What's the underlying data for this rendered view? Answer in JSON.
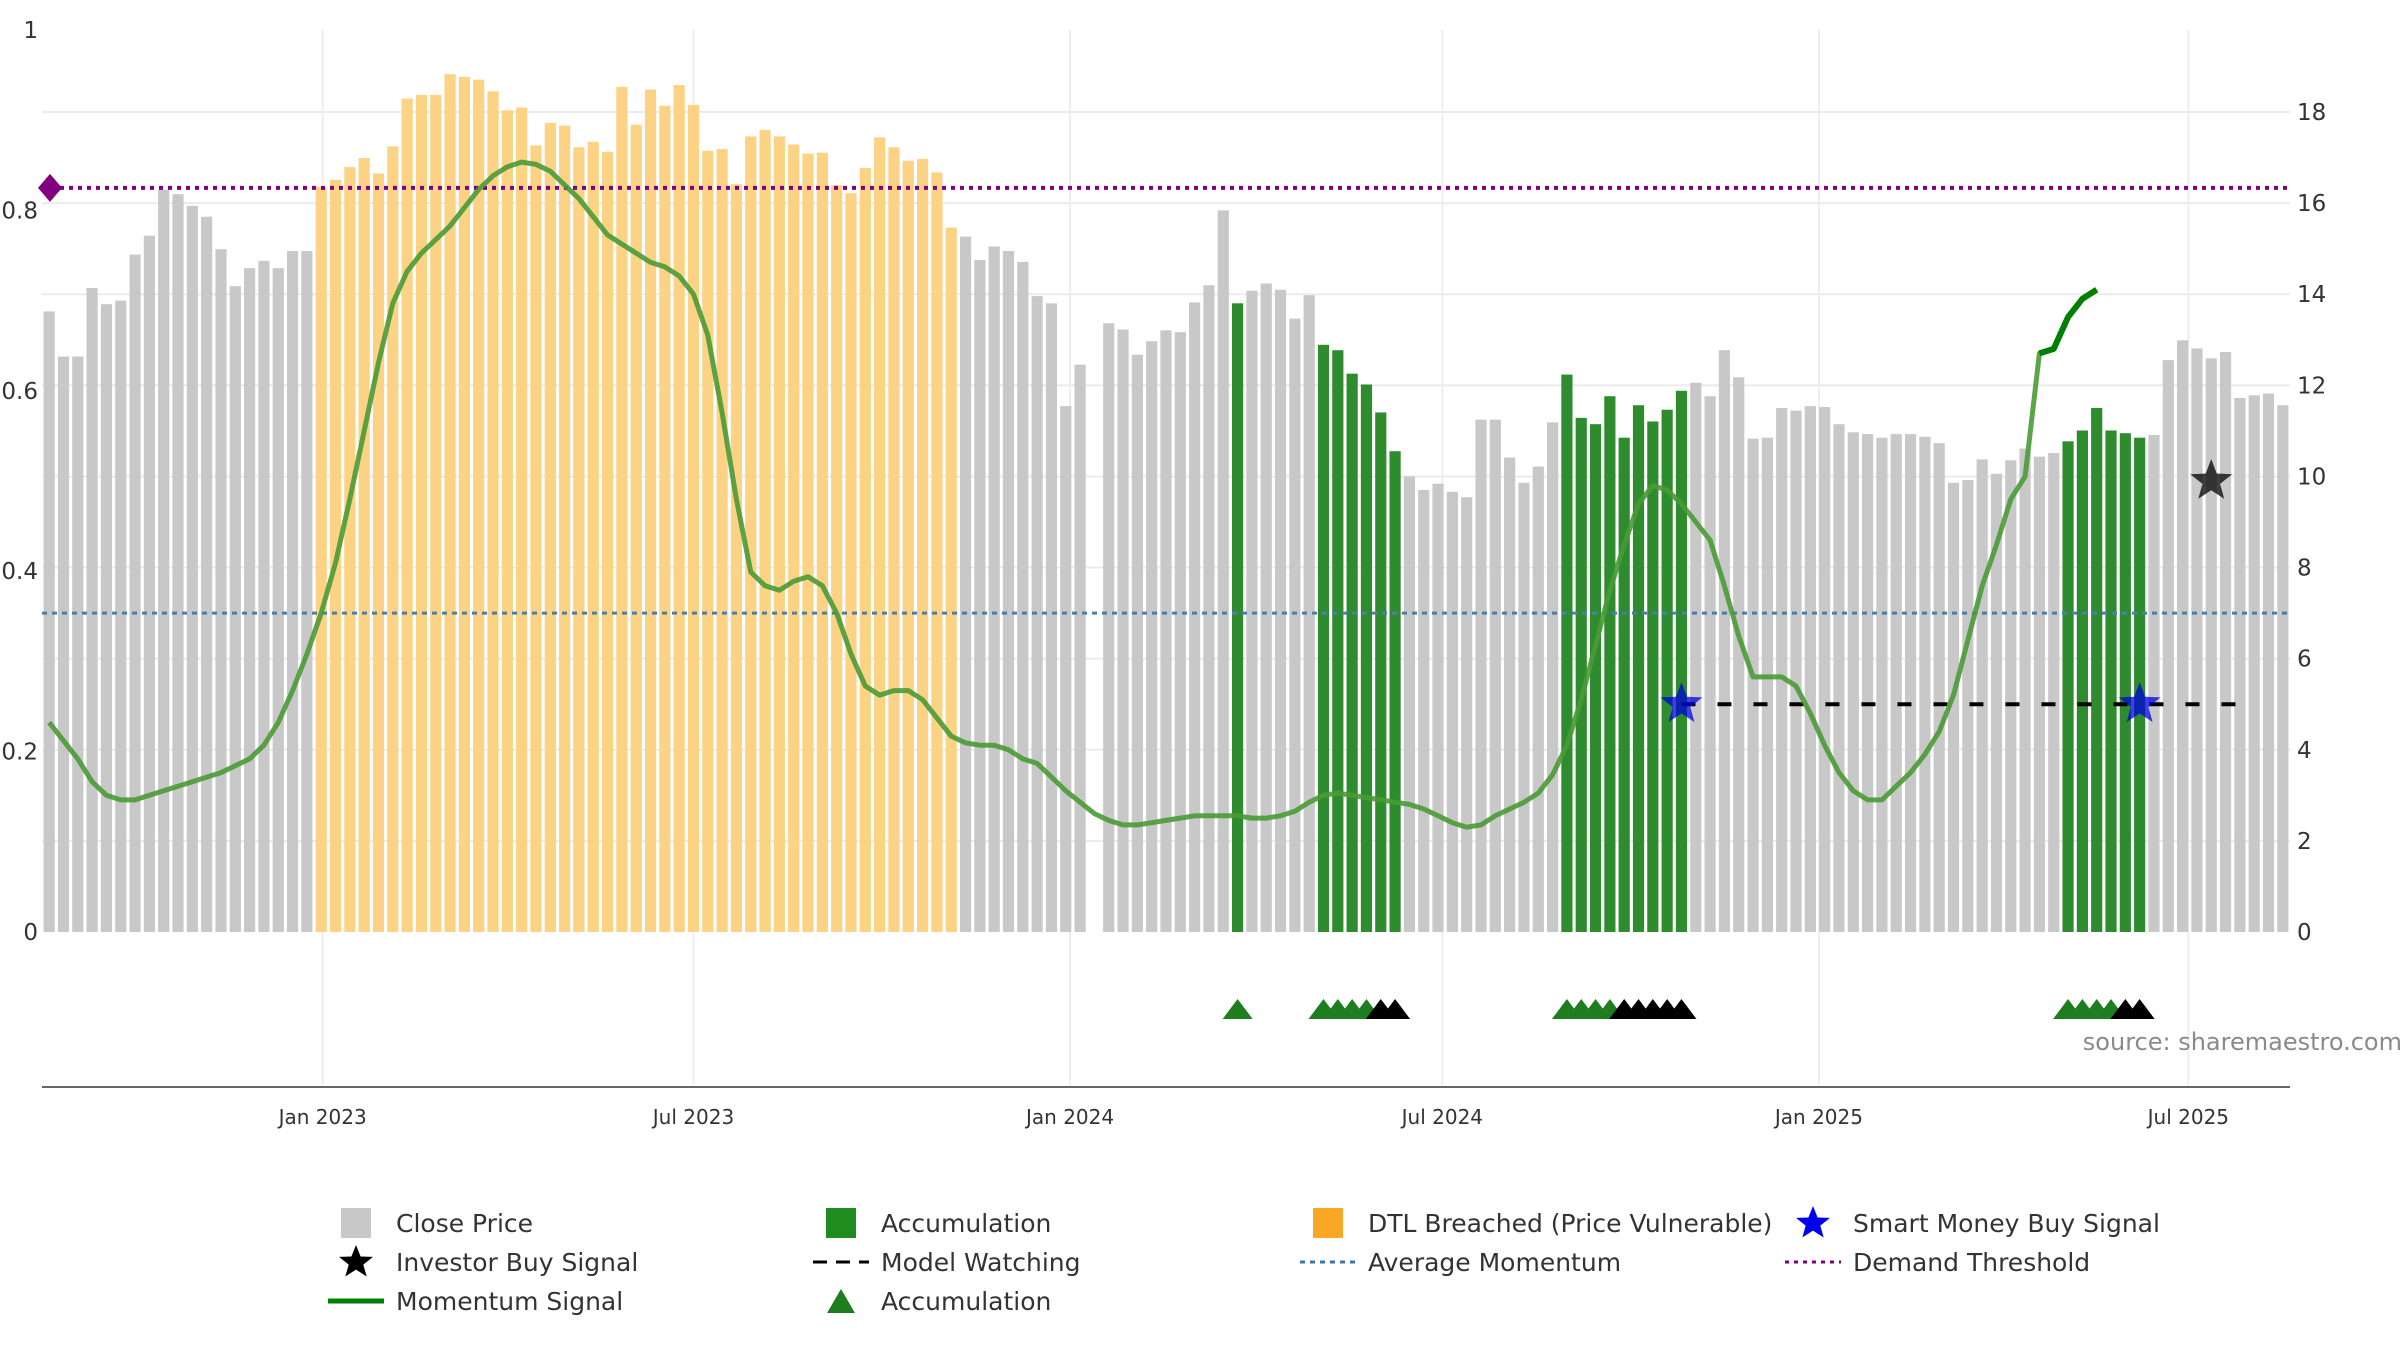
{
  "chart_data": {
    "type": "bar",
    "source_note": "source: sharemaestro.com",
    "x_tick_labels": [
      "Jan 2023",
      "Jul 2023",
      "Jan 2024",
      "Jul 2024",
      "Jan 2025",
      "Jul 2025"
    ],
    "x_tick_positions": [
      19.1,
      45.0,
      71.3,
      97.3,
      123.6,
      149.4
    ],
    "left_axis": {
      "ticks": [
        0,
        0.2,
        0.4,
        0.6,
        0.8,
        1
      ],
      "labels": [
        "0",
        "0.2",
        "0.4",
        "0.6",
        "0.8",
        "1"
      ],
      "range": [
        0,
        1
      ]
    },
    "right_axis": {
      "ticks": [
        0,
        2,
        4,
        6,
        8,
        10,
        12,
        14,
        16,
        18
      ],
      "labels": [
        "0",
        "2",
        "4",
        "6",
        "8",
        "10",
        "12",
        "14",
        "16",
        "18"
      ],
      "range": [
        0,
        19.8
      ]
    },
    "colors": {
      "close_price": "#c8c8c8",
      "accumulation": "#2e8b2e",
      "dtl_breached": "#fcd284",
      "momentum": "#4a9a35",
      "momentum_highlight": "#008000",
      "demand_threshold": "#800080",
      "average_momentum": "#4b7fa3",
      "model_watching": "#000000",
      "smart_money": "#0000dd",
      "investor_buy": "#000000",
      "grid": "#ebebeb"
    },
    "series": [
      {
        "name": "Close Price",
        "axis": "left",
        "values": [
          0.688,
          0.638,
          0.638,
          0.714,
          0.696,
          0.7,
          0.751,
          0.772,
          0.823,
          0.818,
          0.805,
          0.793,
          0.757,
          0.716,
          0.736,
          0.744,
          0.736,
          0.755,
          0.755,
          0.826,
          0.834,
          0.848,
          0.858,
          0.841,
          0.871,
          0.924,
          0.928,
          0.928,
          0.951,
          0.948,
          0.945,
          0.932,
          0.911,
          0.914,
          0.872,
          0.897,
          0.894,
          0.87,
          0.876,
          0.865,
          0.937,
          0.895,
          0.934,
          0.916,
          0.939,
          0.917,
          0.866,
          0.868,
          0.829,
          0.882,
          0.889,
          0.882,
          0.873,
          0.863,
          0.864,
          0.828,
          0.819,
          0.847,
          0.881,
          0.87,
          0.855,
          0.857,
          0.842,
          0.781,
          0.771,
          0.745,
          0.76,
          0.755,
          0.743,
          0.705,
          0.697,
          0.583,
          0.629,
          0.0,
          0.675,
          0.668,
          0.64,
          0.655,
          0.667,
          0.665,
          0.698,
          0.717,
          0.8,
          0.697,
          0.711,
          0.719,
          0.712,
          0.68,
          0.706,
          0.651,
          0.645,
          0.619,
          0.607,
          0.576,
          0.533,
          0.505,
          0.49,
          0.497,
          0.488,
          0.482,
          0.568,
          0.568,
          0.526,
          0.498,
          0.516,
          0.565,
          0.618,
          0.57,
          0.563,
          0.594,
          0.548,
          0.584,
          0.566,
          0.579,
          0.6,
          0.609,
          0.594,
          0.645,
          0.615,
          0.547,
          0.548,
          0.581,
          0.578,
          0.583,
          0.582,
          0.563,
          0.554,
          0.552,
          0.548,
          0.552,
          0.552,
          0.549,
          0.542,
          0.498,
          0.501,
          0.524,
          0.508,
          0.523,
          0.536,
          0.527,
          0.531,
          0.544,
          0.556,
          0.581,
          0.556,
          0.553,
          0.548,
          0.551,
          0.634,
          0.656,
          0.647,
          0.636,
          0.643,
          0.592,
          0.595,
          0.597,
          0.584
        ]
      },
      {
        "name": "Momentum Signal",
        "axis": "right",
        "values": [
          4.6,
          4.2,
          3.8,
          3.3,
          3.0,
          2.9,
          2.9,
          3.0,
          3.1,
          3.2,
          3.3,
          3.4,
          3.5,
          3.65,
          3.8,
          4.1,
          4.6,
          5.3,
          6.1,
          7.0,
          8.1,
          9.5,
          11.0,
          12.5,
          13.8,
          14.5,
          14.9,
          15.2,
          15.5,
          15.9,
          16.3,
          16.6,
          16.8,
          16.9,
          16.85,
          16.7,
          16.4,
          16.1,
          15.7,
          15.3,
          15.1,
          14.9,
          14.7,
          14.6,
          14.4,
          14.0,
          13.1,
          11.4,
          9.5,
          7.9,
          7.6,
          7.5,
          7.7,
          7.8,
          7.6,
          7.0,
          6.1,
          5.4,
          5.2,
          5.3,
          5.3,
          5.1,
          4.7,
          4.3,
          4.15,
          4.1,
          4.1,
          4.0,
          3.8,
          3.7,
          3.4,
          3.1,
          2.85,
          2.6,
          2.45,
          2.35,
          2.35,
          2.4,
          2.45,
          2.5,
          2.55,
          2.55,
          2.55,
          2.55,
          2.5,
          2.5,
          2.55,
          2.65,
          2.85,
          3.0,
          3.05,
          3.0,
          2.95,
          2.9,
          2.85,
          2.8,
          2.7,
          2.55,
          2.4,
          2.3,
          2.35,
          2.55,
          2.7,
          2.85,
          3.05,
          3.45,
          4.1,
          5.1,
          6.3,
          7.5,
          8.5,
          9.4,
          9.8,
          9.7,
          9.4,
          9.0,
          8.6,
          7.6,
          6.5,
          5.6,
          5.6,
          5.6,
          5.4,
          4.8,
          4.1,
          3.5,
          3.1,
          2.9,
          2.9,
          3.2,
          3.5,
          3.9,
          4.4,
          5.2,
          6.4,
          7.6,
          8.5,
          9.5,
          10.0,
          12.7,
          12.8,
          13.5,
          13.9,
          14.1
        ]
      }
    ],
    "regions": {
      "dtl_breached": [
        [
          19,
          55
        ],
        [
          56,
          63
        ]
      ],
      "accumulation": [
        [
          83,
          83
        ],
        [
          89,
          94
        ],
        [
          106,
          114
        ],
        [
          141,
          146
        ]
      ]
    },
    "demand_threshold": 0.825,
    "average_momentum": 7.0,
    "model_watching": {
      "y": 5.0,
      "from": 114,
      "to": 154
    },
    "smart_money_buy_signals": [
      {
        "x": 114,
        "y": 5.0
      },
      {
        "x": 146,
        "y": 5.0
      }
    ],
    "investor_buy_signals": [
      {
        "x": 151,
        "y": 0.5
      }
    ],
    "accumulation_markers": {
      "green": [
        83,
        89,
        90,
        91,
        92,
        106,
        107,
        108,
        109,
        141,
        142,
        143,
        144
      ],
      "black": [
        93,
        94,
        110,
        111,
        112,
        113,
        114,
        145,
        146
      ]
    }
  },
  "legend": [
    {
      "key": "close_price",
      "label": "Close Price"
    },
    {
      "key": "accumulation",
      "label": "Accumulation"
    },
    {
      "key": "dtl",
      "label": "DTL Breached (Price Vulnerable)"
    },
    {
      "key": "smart_money",
      "label": "Smart Money Buy Signal"
    },
    {
      "key": "investor_buy",
      "label": "Investor Buy Signal"
    },
    {
      "key": "model_watching",
      "label": "Model Watching"
    },
    {
      "key": "avg_momentum",
      "label": "Average Momentum"
    },
    {
      "key": "demand",
      "label": "Demand Threshold"
    },
    {
      "key": "momentum",
      "label": "Momentum Signal"
    },
    {
      "key": "acc_marker",
      "label": "Accumulation"
    }
  ]
}
